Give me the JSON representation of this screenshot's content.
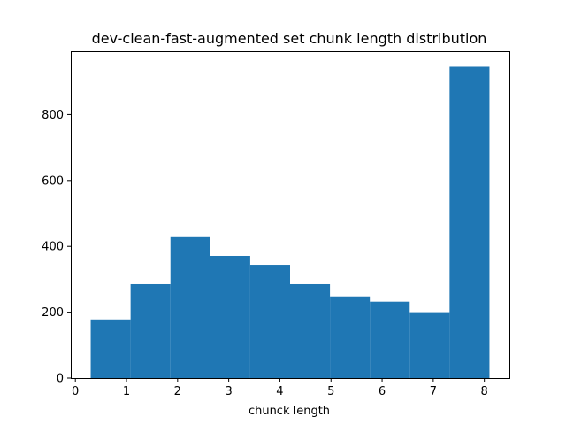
{
  "chart_data": {
    "type": "bar",
    "title": "dev-clean-fast-augmented set chunk length distribution",
    "xlabel": "chunck length",
    "ylabel": "",
    "bins": [
      {
        "x0": 0.3,
        "x1": 1.08,
        "count": 178
      },
      {
        "x0": 1.08,
        "x1": 1.86,
        "count": 285
      },
      {
        "x0": 1.86,
        "x1": 2.64,
        "count": 428
      },
      {
        "x0": 2.64,
        "x1": 3.42,
        "count": 371
      },
      {
        "x0": 3.42,
        "x1": 4.2,
        "count": 344
      },
      {
        "x0": 4.2,
        "x1": 4.98,
        "count": 285
      },
      {
        "x0": 4.98,
        "x1": 5.76,
        "count": 248
      },
      {
        "x0": 5.76,
        "x1": 6.54,
        "count": 232
      },
      {
        "x0": 6.54,
        "x1": 7.32,
        "count": 200
      },
      {
        "x0": 7.32,
        "x1": 8.1,
        "count": 945
      }
    ],
    "xlim": [
      -0.09,
      8.49
    ],
    "ylim": [
      0,
      992
    ],
    "xticks": [
      "0",
      "1",
      "2",
      "3",
      "4",
      "5",
      "6",
      "7",
      "8"
    ],
    "yticks": [
      "0",
      "200",
      "400",
      "600",
      "800"
    ],
    "color": "#1f77b4",
    "grid": false,
    "legend": "none"
  }
}
